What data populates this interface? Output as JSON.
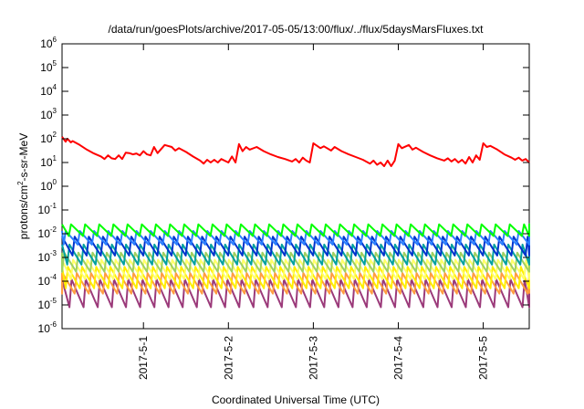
{
  "chart_data": {
    "type": "line",
    "title": "/data/run/goesPlots/archive/2017-05-05/13:00/flux/../flux/5daysMarsFluxes.txt",
    "xlabel": "Coordinated Universal Time (UTC)",
    "ylabel": {
      "prefix": "protons/cm",
      "sup": "2",
      "suffix": "-s-sr-MeV"
    },
    "y_scale": "log",
    "ylim": [
      1e-06,
      1000000.0
    ],
    "y_ticks": [
      {
        "value": 1e-06,
        "base": "10",
        "exp": "-6"
      },
      {
        "value": 1e-05,
        "base": "10",
        "exp": "-5"
      },
      {
        "value": 0.0001,
        "base": "10",
        "exp": "-4"
      },
      {
        "value": 0.001,
        "base": "10",
        "exp": "-3"
      },
      {
        "value": 0.01,
        "base": "10",
        "exp": "-2"
      },
      {
        "value": 0.1,
        "base": "10",
        "exp": "-1"
      },
      {
        "value": 1.0,
        "base": "10",
        "exp": "0"
      },
      {
        "value": 10.0,
        "base": "10",
        "exp": "1"
      },
      {
        "value": 100.0,
        "base": "10",
        "exp": "2"
      },
      {
        "value": 1000.0,
        "base": "10",
        "exp": "3"
      },
      {
        "value": 10000.0,
        "base": "10",
        "exp": "4"
      },
      {
        "value": 100000.0,
        "base": "10",
        "exp": "5"
      },
      {
        "value": 1000000.0,
        "base": "10",
        "exp": "6"
      }
    ],
    "xlim": [
      "2017-04-30T01:00",
      "2017-05-05T13:00"
    ],
    "x_ticks": [
      {
        "value": "2017-05-01T00:00",
        "label": "2017-5-1"
      },
      {
        "value": "2017-05-02T00:00",
        "label": "2017-5-2"
      },
      {
        "value": "2017-05-03T00:00",
        "label": "2017-5-3"
      },
      {
        "value": "2017-05-04T00:00",
        "label": "2017-5-4"
      },
      {
        "value": "2017-05-05T00:00",
        "label": "2017-5-5"
      }
    ],
    "grid": false,
    "legend": "none",
    "series": [
      {
        "color": "#ff0000",
        "points": [
          [
            "2017-04-30T01:00",
            120
          ],
          [
            "2017-04-30T02:00",
            75
          ],
          [
            "2017-04-30T02:30",
            100
          ],
          [
            "2017-04-30T03:30",
            70
          ],
          [
            "2017-04-30T04:00",
            80
          ],
          [
            "2017-04-30T06:00",
            55
          ],
          [
            "2017-04-30T08:00",
            35
          ],
          [
            "2017-04-30T10:00",
            24
          ],
          [
            "2017-04-30T12:00",
            18
          ],
          [
            "2017-04-30T13:00",
            14
          ],
          [
            "2017-04-30T14:00",
            20
          ],
          [
            "2017-04-30T15:00",
            15
          ],
          [
            "2017-04-30T16:00",
            14
          ],
          [
            "2017-04-30T17:00",
            20
          ],
          [
            "2017-04-30T18:00",
            14
          ],
          [
            "2017-04-30T19:00",
            26
          ],
          [
            "2017-04-30T20:00",
            25
          ],
          [
            "2017-04-30T21:00",
            22
          ],
          [
            "2017-04-30T22:00",
            24
          ],
          [
            "2017-04-30T23:00",
            20
          ],
          [
            "2017-05-01T00:00",
            30
          ],
          [
            "2017-05-01T01:00",
            22
          ],
          [
            "2017-05-01T02:00",
            20
          ],
          [
            "2017-05-01T03:00",
            45
          ],
          [
            "2017-05-01T04:00",
            25
          ],
          [
            "2017-05-01T06:00",
            55
          ],
          [
            "2017-05-01T08:00",
            45
          ],
          [
            "2017-05-01T09:00",
            32
          ],
          [
            "2017-05-01T10:00",
            40
          ],
          [
            "2017-05-01T12:00",
            28
          ],
          [
            "2017-05-01T14:00",
            18
          ],
          [
            "2017-05-01T16:00",
            12
          ],
          [
            "2017-05-01T17:00",
            9
          ],
          [
            "2017-05-01T18:00",
            13
          ],
          [
            "2017-05-01T19:00",
            10
          ],
          [
            "2017-05-01T20:00",
            13
          ],
          [
            "2017-05-01T21:00",
            10
          ],
          [
            "2017-05-01T22:00",
            14
          ],
          [
            "2017-05-02T00:00",
            10
          ],
          [
            "2017-05-02T01:00",
            18
          ],
          [
            "2017-05-02T02:00",
            10
          ],
          [
            "2017-05-02T03:00",
            60
          ],
          [
            "2017-05-02T04:00",
            30
          ],
          [
            "2017-05-02T05:00",
            45
          ],
          [
            "2017-05-02T06:00",
            35
          ],
          [
            "2017-05-02T08:00",
            45
          ],
          [
            "2017-05-02T10:00",
            30
          ],
          [
            "2017-05-02T12:00",
            22
          ],
          [
            "2017-05-02T14:00",
            17
          ],
          [
            "2017-05-02T16:00",
            14
          ],
          [
            "2017-05-02T18:00",
            11
          ],
          [
            "2017-05-02T19:00",
            14
          ],
          [
            "2017-05-02T20:00",
            10
          ],
          [
            "2017-05-02T21:00",
            16
          ],
          [
            "2017-05-02T22:00",
            12
          ],
          [
            "2017-05-02T23:00",
            10
          ],
          [
            "2017-05-03T00:00",
            65
          ],
          [
            "2017-05-03T02:00",
            40
          ],
          [
            "2017-05-03T03:00",
            48
          ],
          [
            "2017-05-03T05:00",
            32
          ],
          [
            "2017-05-03T06:00",
            45
          ],
          [
            "2017-05-03T08:00",
            30
          ],
          [
            "2017-05-03T10:00",
            22
          ],
          [
            "2017-05-03T12:00",
            17
          ],
          [
            "2017-05-03T14:00",
            13
          ],
          [
            "2017-05-03T16:00",
            9
          ],
          [
            "2017-05-03T17:00",
            12
          ],
          [
            "2017-05-03T18:00",
            8
          ],
          [
            "2017-05-03T19:00",
            10
          ],
          [
            "2017-05-03T20:00",
            7
          ],
          [
            "2017-05-03T21:00",
            12
          ],
          [
            "2017-05-03T22:00",
            7
          ],
          [
            "2017-05-03T23:00",
            12
          ],
          [
            "2017-05-04T00:00",
            60
          ],
          [
            "2017-05-04T01:00",
            40
          ],
          [
            "2017-05-04T03:00",
            55
          ],
          [
            "2017-05-04T04:00",
            35
          ],
          [
            "2017-05-04T05:00",
            42
          ],
          [
            "2017-05-04T07:00",
            28
          ],
          [
            "2017-05-04T09:00",
            20
          ],
          [
            "2017-05-04T11:00",
            15
          ],
          [
            "2017-05-04T13:00",
            12
          ],
          [
            "2017-05-04T14:00",
            15
          ],
          [
            "2017-05-04T15:00",
            11
          ],
          [
            "2017-05-04T16:00",
            14
          ],
          [
            "2017-05-04T17:00",
            10
          ],
          [
            "2017-05-04T18:00",
            13
          ],
          [
            "2017-05-04T19:00",
            9
          ],
          [
            "2017-05-04T20:00",
            17
          ],
          [
            "2017-05-04T21:00",
            10
          ],
          [
            "2017-05-04T22:00",
            20
          ],
          [
            "2017-05-04T23:00",
            13
          ],
          [
            "2017-05-05T00:00",
            65
          ],
          [
            "2017-05-05T01:00",
            45
          ],
          [
            "2017-05-05T02:00",
            50
          ],
          [
            "2017-05-05T04:00",
            35
          ],
          [
            "2017-05-05T06:00",
            22
          ],
          [
            "2017-05-05T08:00",
            16
          ],
          [
            "2017-05-05T09:00",
            13
          ],
          [
            "2017-05-05T10:00",
            16
          ],
          [
            "2017-05-05T11:00",
            12
          ],
          [
            "2017-05-05T12:00",
            14
          ],
          [
            "2017-05-05T13:00",
            10
          ]
        ]
      },
      {
        "color": "#00ff00",
        "period_hours": 4,
        "min": 0.008,
        "max": 0.025
      },
      {
        "color": "#2b7fff",
        "period_hours": 4,
        "min": 0.0035,
        "max": 0.013
      },
      {
        "color": "#0033cc",
        "period_hours": 4,
        "min": 0.0012,
        "max": 0.0075
      },
      {
        "color": "#00a0a0",
        "period_hours": 4,
        "min": 0.0005,
        "max": 0.0035
      },
      {
        "color": "#a0d060",
        "period_hours": 4,
        "min": 0.00025,
        "max": 0.0016
      },
      {
        "color": "#ffff66",
        "period_hours": 4,
        "min": 0.00012,
        "max": 0.0008
      },
      {
        "color": "#ffee00",
        "period_hours": 4,
        "min": 5e-05,
        "max": 0.0004
      },
      {
        "color": "#ff9e40",
        "period_hours": 4,
        "min": 3e-05,
        "max": 0.00022
      },
      {
        "color": "#9b3a7a",
        "period_hours": 4,
        "min": 8e-06,
        "max": 0.00012
      }
    ]
  }
}
